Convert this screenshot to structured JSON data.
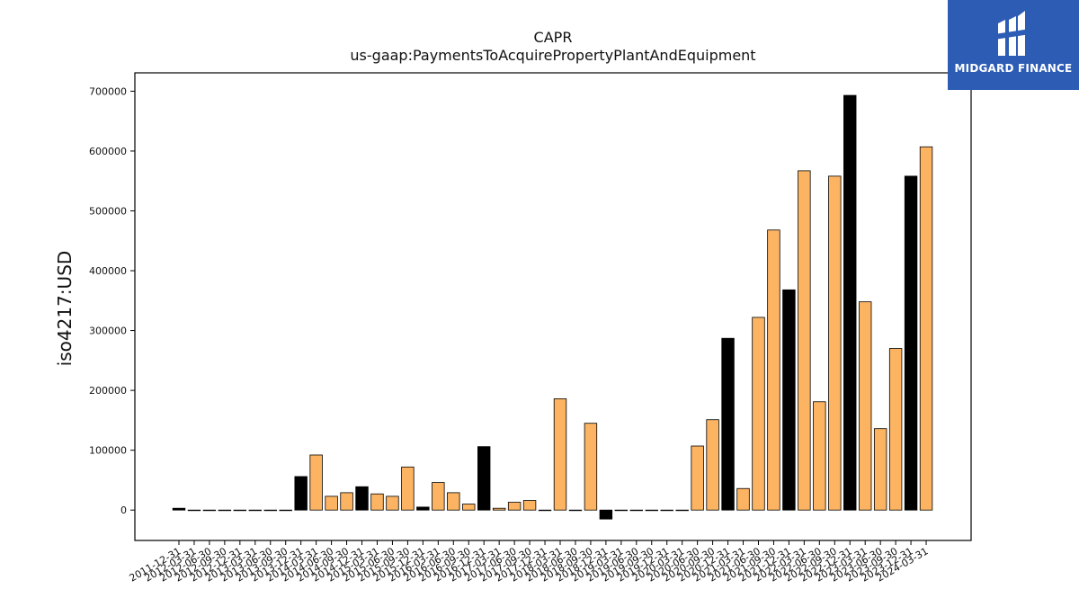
{
  "header": {
    "title": "CAPR",
    "subtitle": "us-gaap:PaymentsToAcquirePropertyPlantAndEquipment"
  },
  "logo": {
    "text": "MIDGARD FINANCE",
    "background": "#2d5cb5"
  },
  "colors": {
    "bar_default": "#fdb462",
    "bar_highlight": "#000000",
    "bar_edge": "#000000"
  },
  "chart_data": {
    "type": "bar",
    "title": "CAPR",
    "subtitle": "us-gaap:PaymentsToAcquirePropertyPlantAndEquipment",
    "xlabel": "",
    "ylabel": "iso4217:USD",
    "ylim": [
      -50000,
      730000
    ],
    "yticks": [
      0,
      100000,
      200000,
      300000,
      400000,
      500000,
      600000,
      700000
    ],
    "ytick_labels": [
      "0",
      "100000",
      "200000",
      "300000",
      "400000",
      "500000",
      "600000",
      "700000"
    ],
    "grid": false,
    "categories": [
      "2011-12-31",
      "2012-03-31",
      "2012-06-30",
      "2012-09-30",
      "2012-12-31",
      "2013-03-31",
      "2013-06-30",
      "2013-09-30",
      "2013-12-31",
      "2014-03-31",
      "2014-06-30",
      "2014-09-30",
      "2014-12-31",
      "2015-03-31",
      "2015-06-30",
      "2015-09-30",
      "2015-12-31",
      "2016-03-31",
      "2016-06-30",
      "2016-09-30",
      "2016-12-31",
      "2017-03-31",
      "2017-06-30",
      "2017-09-30",
      "2017-12-31",
      "2018-03-31",
      "2018-06-30",
      "2018-09-30",
      "2018-12-31",
      "2019-03-31",
      "2019-06-30",
      "2019-09-30",
      "2019-12-31",
      "2020-03-31",
      "2020-06-30",
      "2020-09-30",
      "2020-12-31",
      "2021-03-31",
      "2021-06-30",
      "2021-09-30",
      "2021-12-31",
      "2022-03-31",
      "2022-06-30",
      "2022-09-30",
      "2022-12-31",
      "2023-03-31",
      "2023-06-30",
      "2023-09-30",
      "2023-12-31",
      "2024-03-31"
    ],
    "values": [
      3000,
      0,
      0,
      0,
      0,
      0,
      0,
      0,
      56000,
      92000,
      23000,
      29000,
      39000,
      27000,
      23000,
      72000,
      5000,
      46000,
      29000,
      10000,
      106000,
      3000,
      13000,
      16000,
      0,
      186000,
      0,
      145000,
      -15000,
      0,
      0,
      0,
      0,
      0,
      107000,
      151000,
      287000,
      36000,
      322000,
      468000,
      368000,
      567000,
      181000,
      558000,
      693000,
      348000,
      136000,
      270000,
      558000,
      607000
    ],
    "highlight": [
      true,
      false,
      false,
      false,
      false,
      false,
      false,
      false,
      true,
      false,
      false,
      false,
      true,
      false,
      false,
      false,
      true,
      false,
      false,
      false,
      true,
      false,
      false,
      false,
      false,
      false,
      false,
      false,
      true,
      false,
      false,
      false,
      false,
      false,
      false,
      false,
      true,
      false,
      false,
      false,
      true,
      false,
      false,
      false,
      true,
      false,
      false,
      false,
      true,
      false
    ]
  }
}
